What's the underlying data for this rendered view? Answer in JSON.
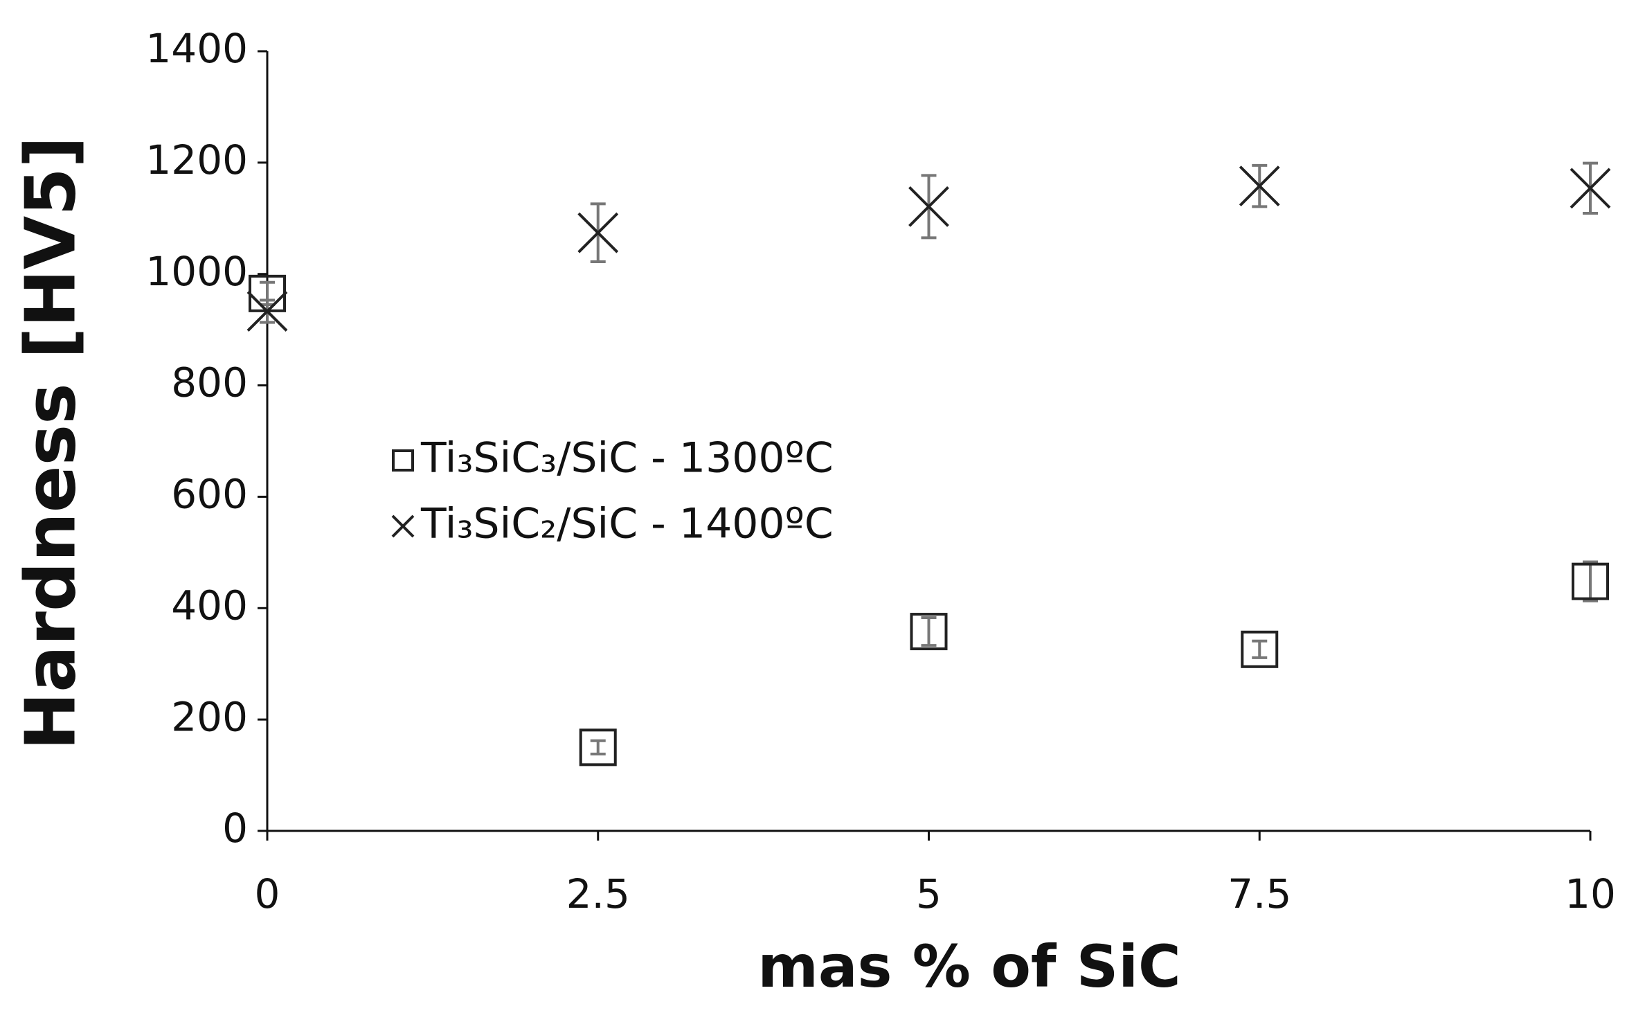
{
  "chart_data": {
    "type": "scatter",
    "x_label": "mas % of SiC",
    "y_label": "Hardness [HV5]",
    "xlim": [
      0,
      10
    ],
    "xticks": [
      0,
      2.5,
      5,
      7.5,
      10
    ],
    "ylim": [
      0,
      1400
    ],
    "yticks": [
      0,
      200,
      400,
      600,
      800,
      1000,
      1200,
      1400
    ],
    "legend": "left",
    "series": [
      {
        "name": "Ti₃SiC₃/SiC - 1300ºC",
        "marker": "square",
        "color": "#222222",
        "x": [
          0,
          2.5,
          5,
          7.5,
          10
        ],
        "values": [
          965,
          150,
          358,
          326,
          448
        ],
        "errors": [
          20,
          12,
          25,
          15,
          35
        ]
      },
      {
        "name": "Ti₃SiC₂/SiC - 1400ºC",
        "marker": "cross",
        "color": "#222222",
        "x": [
          0,
          2.5,
          5,
          7.5,
          10
        ],
        "values": [
          933,
          1074,
          1121,
          1158,
          1154
        ],
        "errors": [
          20,
          52,
          56,
          37,
          45
        ]
      }
    ]
  }
}
